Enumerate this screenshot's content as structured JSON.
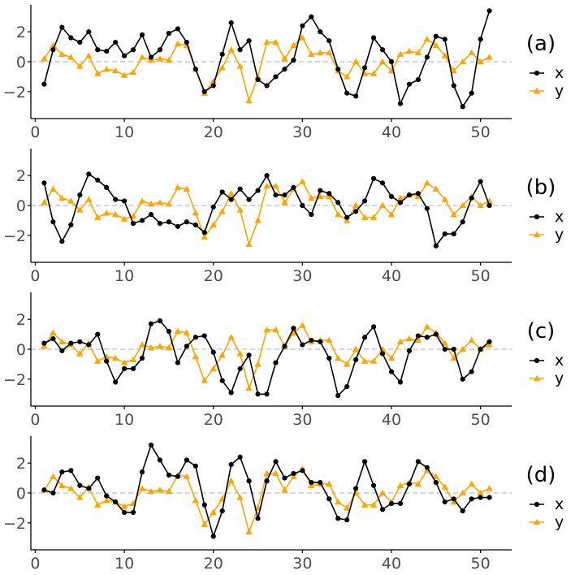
{
  "colors": {
    "x": "#000000",
    "y": "#FFA500",
    "zero_line": "#BEBEBE",
    "axis": "#000000"
  },
  "chart_data": {
    "type": "line",
    "x": [
      1,
      2,
      3,
      4,
      5,
      6,
      7,
      8,
      9,
      10,
      11,
      12,
      13,
      14,
      15,
      16,
      17,
      18,
      19,
      20,
      21,
      22,
      23,
      24,
      25,
      26,
      27,
      28,
      29,
      30,
      31,
      32,
      33,
      34,
      35,
      36,
      37,
      38,
      39,
      40,
      41,
      42,
      43,
      44,
      45,
      46,
      47,
      48,
      49,
      50,
      51
    ],
    "xlim": [
      -0.5,
      53.5
    ],
    "ylim": [
      -3.8,
      3.8
    ],
    "x_ticks": [
      0,
      10,
      20,
      30,
      40,
      50
    ],
    "y_ticks": [
      -2,
      0,
      2
    ],
    "x_tick_labels": [
      "0",
      "10",
      "20",
      "30",
      "40",
      "50"
    ],
    "y_tick_labels": [
      "−2",
      "0",
      "2"
    ],
    "zero_line": "dashed",
    "legend": {
      "position": "right",
      "entries": [
        "x",
        "y"
      ]
    },
    "panels": [
      {
        "label": "(a)",
        "series": [
          {
            "name": "x",
            "marker": "circle",
            "values": [
              -1.5,
              0.8,
              2.3,
              1.6,
              1.3,
              2.0,
              0.8,
              0.7,
              1.3,
              0.4,
              0.8,
              1.8,
              0.3,
              0.8,
              1.9,
              2.2,
              1.3,
              -0.5,
              -2.0,
              -1.6,
              0.5,
              2.6,
              0.8,
              1.4,
              -1.2,
              -1.6,
              -1.0,
              -0.5,
              0.1,
              2.4,
              3.0,
              2.0,
              1.4,
              -0.5,
              -2.1,
              -2.3,
              -0.4,
              1.6,
              0.8,
              0.0,
              -2.8,
              -1.5,
              -1.2,
              0.3,
              1.7,
              1.5,
              -1.6,
              -3.0,
              -2.1,
              1.5,
              3.4
            ]
          },
          {
            "name": "y",
            "marker": "triangle",
            "values": [
              0.2,
              1.1,
              0.5,
              0.3,
              -0.3,
              0.4,
              -0.8,
              -0.5,
              -0.6,
              -0.9,
              -0.7,
              0.3,
              0.1,
              0.2,
              0.1,
              1.2,
              1.1,
              -0.5,
              -2.1,
              -1.3,
              -0.4,
              0.8,
              -0.3,
              -2.6,
              -1.0,
              1.3,
              1.3,
              0.2,
              1.1,
              1.6,
              0.5,
              0.6,
              0.6,
              -0.6,
              -1.0,
              0.0,
              -0.8,
              -0.8,
              0.0,
              -0.6,
              0.5,
              0.7,
              0.6,
              1.5,
              1.1,
              0.4,
              -0.6,
              0.0,
              0.6,
              0.0,
              0.3
            ]
          }
        ]
      },
      {
        "label": "(b)",
        "series": [
          {
            "name": "x",
            "marker": "circle",
            "values": [
              1.5,
              -1.1,
              -2.4,
              -1.3,
              0.7,
              2.1,
              1.7,
              1.2,
              0.4,
              0.3,
              -1.2,
              -1.0,
              -0.6,
              -1.2,
              -1.1,
              -1.4,
              -1.1,
              -1.3,
              -1.8,
              -0.1,
              0.9,
              0.4,
              1.1,
              0.4,
              1.0,
              2.0,
              0.7,
              0.7,
              1.2,
              0.0,
              -0.6,
              1.0,
              0.8,
              0.2,
              -0.8,
              -0.4,
              0.3,
              1.8,
              1.5,
              0.6,
              0.2,
              0.7,
              0.8,
              -0.2,
              -2.7,
              -1.9,
              -1.9,
              -1.1,
              0.5,
              1.6,
              0.0
            ]
          },
          {
            "name": "y",
            "marker": "triangle",
            "values": [
              0.2,
              1.1,
              0.5,
              0.3,
              -0.3,
              0.4,
              -0.8,
              -0.5,
              -0.6,
              -0.9,
              -0.7,
              0.3,
              0.1,
              0.2,
              0.1,
              1.2,
              1.1,
              -0.5,
              -2.1,
              -1.3,
              -0.4,
              0.8,
              -0.3,
              -2.6,
              -1.0,
              1.3,
              1.3,
              0.2,
              1.1,
              1.6,
              0.5,
              0.6,
              0.6,
              -0.6,
              -1.0,
              0.0,
              -0.8,
              -0.8,
              0.0,
              -0.6,
              0.5,
              0.7,
              0.6,
              1.5,
              1.1,
              0.4,
              -0.6,
              0.0,
              0.6,
              0.0,
              0.3
            ]
          }
        ]
      },
      {
        "label": "(c)",
        "series": [
          {
            "name": "x",
            "marker": "circle",
            "values": [
              0.4,
              0.7,
              -0.1,
              0.4,
              0.5,
              0.3,
              1.0,
              -0.8,
              -2.2,
              -1.3,
              -1.3,
              -0.6,
              1.7,
              1.9,
              1.2,
              -0.9,
              0.2,
              0.8,
              0.9,
              -0.2,
              -2.1,
              -2.9,
              -1.3,
              -0.4,
              -3.0,
              -3.0,
              -0.9,
              0.2,
              1.4,
              0.3,
              0.6,
              0.5,
              -0.6,
              -3.1,
              -2.5,
              -0.7,
              0.8,
              1.5,
              -0.3,
              -1.5,
              -2.2,
              -0.1,
              0.9,
              0.8,
              1.0,
              0.0,
              0.0,
              -2.0,
              -1.5,
              0.0,
              0.5
            ]
          },
          {
            "name": "y",
            "marker": "triangle",
            "values": [
              0.2,
              1.1,
              0.5,
              0.3,
              -0.3,
              0.4,
              -0.8,
              -0.5,
              -0.6,
              -0.9,
              -0.7,
              0.3,
              0.1,
              0.2,
              0.1,
              1.2,
              1.1,
              -0.5,
              -2.1,
              -1.3,
              -0.4,
              0.8,
              -0.3,
              -2.6,
              -1.0,
              1.3,
              1.3,
              0.2,
              1.1,
              1.6,
              0.5,
              0.6,
              0.6,
              -0.6,
              -1.0,
              0.0,
              -0.8,
              -0.8,
              0.0,
              -0.6,
              0.5,
              0.7,
              0.6,
              1.5,
              1.1,
              0.4,
              -0.6,
              0.0,
              0.6,
              0.0,
              0.3
            ]
          }
        ]
      },
      {
        "label": "(d)",
        "series": [
          {
            "name": "x",
            "marker": "circle",
            "values": [
              0.2,
              0.0,
              1.4,
              1.5,
              0.5,
              0.3,
              1.0,
              -0.2,
              -0.6,
              -1.3,
              -1.3,
              1.4,
              3.2,
              2.2,
              1.2,
              1.1,
              2.2,
              1.8,
              -0.8,
              -2.9,
              -1.2,
              1.9,
              2.4,
              0.8,
              -1.7,
              0.8,
              2.1,
              1.0,
              1.3,
              1.5,
              0.7,
              0.7,
              -0.4,
              -1.7,
              -1.8,
              0.3,
              2.1,
              0.5,
              -1.1,
              -0.7,
              -0.7,
              0.6,
              2.1,
              1.7,
              0.7,
              -0.6,
              -0.4,
              -1.2,
              -0.4,
              -0.3,
              -0.3
            ]
          },
          {
            "name": "y",
            "marker": "triangle",
            "values": [
              0.2,
              1.1,
              0.5,
              0.3,
              -0.3,
              0.4,
              -0.8,
              -0.5,
              -0.6,
              -0.9,
              -0.7,
              0.3,
              0.1,
              0.2,
              0.1,
              1.2,
              1.1,
              -0.5,
              -2.1,
              -1.3,
              -0.4,
              0.8,
              -0.3,
              -2.6,
              -1.0,
              1.3,
              1.3,
              0.2,
              1.1,
              1.6,
              0.5,
              0.6,
              0.6,
              -0.6,
              -1.0,
              0.0,
              -0.8,
              -0.8,
              0.0,
              -0.6,
              0.5,
              0.7,
              0.6,
              1.5,
              1.1,
              0.4,
              -0.6,
              0.0,
              0.6,
              0.0,
              0.3
            ]
          }
        ]
      }
    ]
  }
}
